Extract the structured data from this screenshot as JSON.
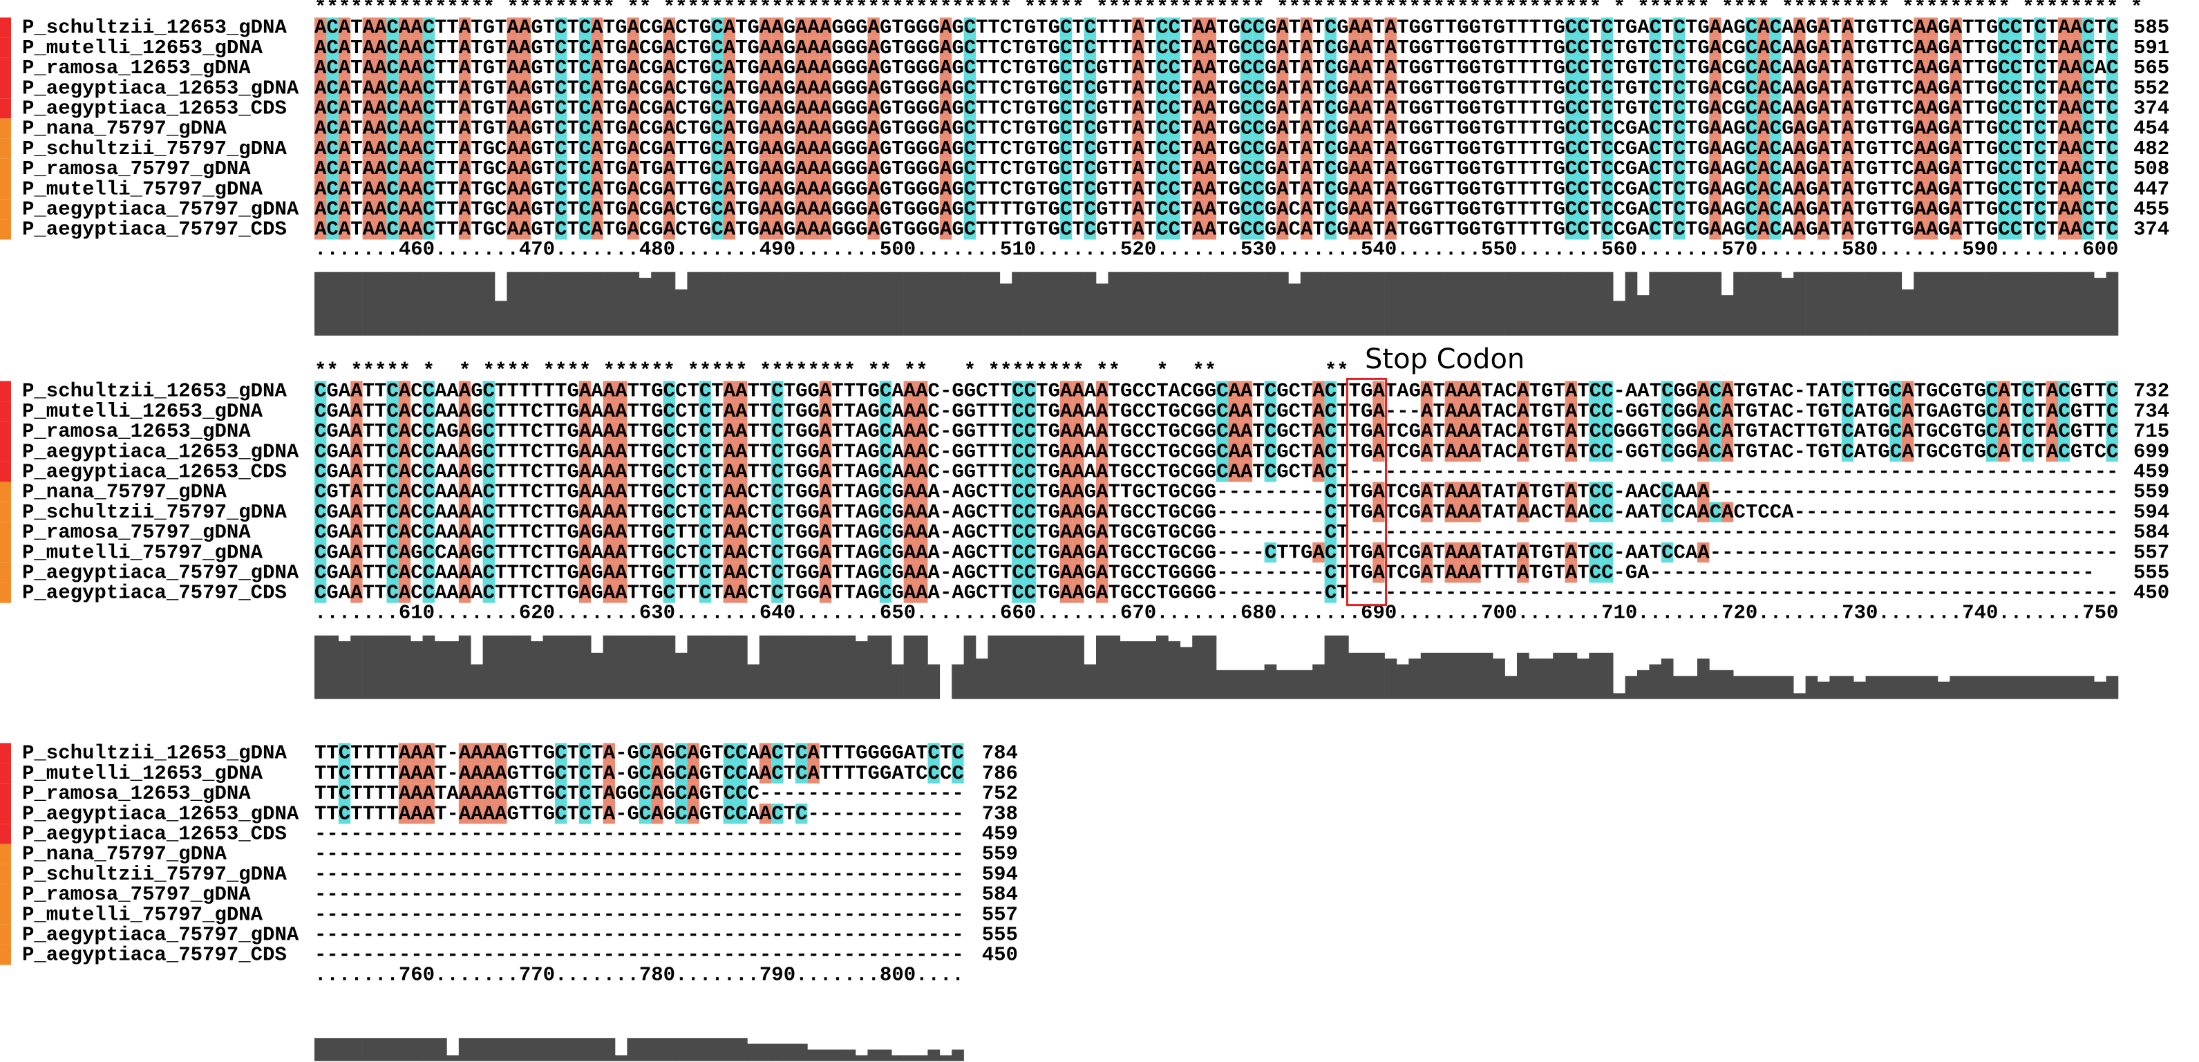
{
  "annotation": "Stop Codon",
  "blocks": [
    {
      "conservation": "*************** ********* ** ***************************** ***** ************** *************************** * ****** **** ********* ********* ******** *",
      "rows": [
        {
          "name": "P_schultzii_12653_gDNA",
          "sequence": "ACATAACAACTTATGTAAGTCTCATGACGACTGCATGAAGAAAGGGAGTGGGAGCTTCTGTGCTCTTTATCCTAATGCCGATATCGAATATGGTTGGTGTTTTGCCTCTGACTCTGAAGCACAAGATATGTTCAAGATTGCCTCTAACTC",
          "count": 585
        },
        {
          "name": "P_mutelli_12653_gDNA",
          "sequence": "ACATAACAACTTATGTAAGTCTCATGACGACTGCATGAAGAAAGGGAGTGGGAGCTTCTGTGCTCTTTATCCTAATGCCGATATCGAATATGGTTGGTGTTTTGCCTCTGTCTCTGACGCACAAGATATGTTCAAGATTGCCTCTAACTC",
          "count": 591
        },
        {
          "name": "P_ramosa_12653_gDNA",
          "sequence": "ACATAACAACTTATGTAAGTCTCATGACGACTGCATGAAGAAAGGGAGTGGGAGCTTCTGTGCTCGTTATCCTAATGCCGATATCGAATATGGTTGGTGTTTTGCCTCTGTCTCTGACGCACAAGATATGTTCAAGATTGCCTCTAACAC",
          "count": 565
        },
        {
          "name": "P_aegyptiaca_12653_gDNA",
          "sequence": "ACATAACAACTTATGTAAGTCTCATGACGACTGCATGAAGAAAGGGAGTGGGAGCTTCTGTGCTCGTTATCCTAATGCCGATATCGAATATGGTTGGTGTTTTGCCTCTGTCTCTGACGCACAAGATATGTTCAAGATTGCCTCTAACTC",
          "count": 552
        },
        {
          "name": "P_aegyptiaca_12653_CDS",
          "sequence": "ACATAACAACTTATGTAAGTCTCATGACGACTGCATGAAGAAAGGGAGTGGGAGCTTCTGTGCTCGTTATCCTAATGCCGATATCGAATATGGTTGGTGTTTTGCCTCTGTCTCTGACGCACAAGATATGTTCAAGATTGCCTCTAACTC",
          "count": 374
        },
        {
          "name": "P_nana_75797_gDNA",
          "sequence": "ACATAACAACTTATGTAAGTCTCATGACGACTGCATGAAGAAAGGGAGTGGGAGCTTCTGTGCTCGTTATCCTAATGCCGATATCGAATATGGTTGGTGTTTTGCCTCCGACTCTGAAGCACGAGATATGTTGAAGATTGCCTCTAACTC",
          "count": 454
        },
        {
          "name": "P_schultzii_75797_gDNA",
          "sequence": "ACATAACAACTTATGCAAGTCTCATGACGATTGCATGAAGAAAGGGAGTGGGAGCTTCTGTGCTCGTTATCCTAATGCCGATATCGAATATGGTTGGTGTTTTGCCTCCGACTCTGAAGCACAAGATATGTTCAAGATTGCCTCTAACTC",
          "count": 482
        },
        {
          "name": "P_ramosa_75797_gDNA",
          "sequence": "ACATAACAACTTATGCAAGTCTCATGATGATTGCATGAAGAAAGGGAGTGGGAGCTTCTGTGCTCGTTATCCTAATGCCGATATCGAATATGGTTGGTGTTTTGCCTCCGACTCTGAAGCACAAGATATGTTCAAGATTGCCTCTAACTC",
          "count": 508
        },
        {
          "name": "P_mutelli_75797_gDNA",
          "sequence": "ACATAACAACTTATGCAAGTCTCATGACGATTGCATGAAGAAAGGGAGTGGGAGCTTCTGTGCTCGTTATCCTAATGCCGATATCGAATATGGTTGGTGTTTTGCCTCCGACTCTGAAGCACAAGATATGTTCAAGATTGCCTCTAACTC",
          "count": 447
        },
        {
          "name": "P_aegyptiaca_75797_gDNA",
          "sequence": "ACATAACAACTTATGCAAGTCTCATGACGACTGCATGAAGAAAGGGAGTGGGAGCTTTTGTGCTCGTTATCCTAATGCCGACATCGAATATGGTTGGTGTTTTGCCTCCGACTCTGAAGCACAAGATATGTTGAAGATTGCCTCTAACTC",
          "count": 455
        },
        {
          "name": "P_aegyptiaca_75797_CDS",
          "sequence": "ACATAACAACTTATGCAAGTCTCATGACGACTGCATGAAGAAAGGGAGTGGGAGCTTTTGTGCTCGTTATCCTAATGCCGACATCGAATATGGTTGGTGTTTTGCCTCCGACTCTGAAGCACAAGATATGTTGAAGATTGCCTCTAACTC",
          "count": 374
        }
      ],
      "ruler": ".......460.......470.......480.......490.......500.......510.......520.......530.......540.......550.......560.......570.......580.......590.......600"
    },
    {
      "conservation": "** ***** *  * **** **** ****** ***** ******** ** **   * ******** **   *  **         **",
      "rows": [
        {
          "name": "P_schultzii_12653_gDNA",
          "sequence": "CGAATTCACCAAAGCTTTTTTGAAAATTGCCTCTAATTCTGGATTTGCAAAC-GGCTTCCTGAAAATGCCTACGGCAATCGCTACTTGATAGATAAATACATGTATCC-AATCGGACATGTAC-TATCTTGCATGCGTGCATCTACGTTC",
          "count": 732
        },
        {
          "name": "P_mutelli_12653_gDNA",
          "sequence": "CGAATTCACCAAAGCTTTCTTGAAAATTGCCTCTAATTCTGGATTAGCAAAC-GGTTTCCTGAAAATGCCTGCGGCAATCGCTACTTGA---ATAAATACATGTATCC-GGTCGGACATGTAC-TGTCATGCATGAGTGCATCTACGTTC",
          "count": 734
        },
        {
          "name": "P_ramosa_12653_gDNA",
          "sequence": "CGAATTCACCAGAGCTTTCTTGAAAATTGCCTCTAATTCTGGATTAGCAAAC-GGTTTCCTGAAAATGCCTGCGGCAATCGCTACTTGATCGATAAATACATGTATCCGGGTCGGACATGTACTTGTCATGCATGCGTGCATCTACGTTC",
          "count": 715
        },
        {
          "name": "P_aegyptiaca_12653_gDNA",
          "sequence": "CGAATTCACCAAAGCTTTCTTGAAAATTGCCTCTAATTCTGGATTAGCAAAC-GGTTTCCTGAAAATGCCTGCGGCAATCGCTACTTGATCGATAAATACATGTATCC-GGTCGGACATGTAC-TGTCATGCATGCGTGCATCTACGTCC",
          "count": 699
        },
        {
          "name": "P_aegyptiaca_12653_CDS",
          "sequence": "CGAATTCACCAAAGCTTTCTTGAAAATTGCCTCTAATTCTGGATTAGCAAAC-GGTTTCCTGAAAATGCCTGCGGCAATCGCTACT----------------------------------------------------------------",
          "count": 459
        },
        {
          "name": "P_nana_75797_gDNA",
          "sequence": "CGTATTCACCAAAACTTTCTTGAAAATTGCCTCTAACTCTGGATTAGCGAAA-AGCTTCCTGAAGATTGCTGCGG---------CTTGATCGATAAATATATGTATCC-AACCAAA----------------------------------",
          "count": 559
        },
        {
          "name": "P_schultzii_75797_gDNA",
          "sequence": "CGAATTCACCAAAACTTTCTTGAAAATTGCCTCTAACTCTGGATTAGCGAAA-AGCTTCCTGAAGATGCCTGCGG---------CTTGATCGATAAATATAACTAACC-AATCCAACACTCCA---------------------------",
          "count": 594
        },
        {
          "name": "P_ramosa_75797_gDNA",
          "sequence": "CGAATTCACCAAAACTTTCTTGAGAATTGCTTCTAACTCTGGATTAGCGAAA-AGCTTCCTGAAGATGCGTGCGG---------CT----------------------------------------------------------------",
          "count": 584
        },
        {
          "name": "P_mutelli_75797_gDNA",
          "sequence": "CGAATTCAGCCAAGCTTTCTTGAAAATTGCCTCTAACTCTGGATTAGCGAAA-AGCTTCCTGAAGATGCCTGCGG----CTTGACTTGATCGATAAATATATGTATCC-AATCCAA----------------------------------",
          "count": 557
        },
        {
          "name": "P_aegyptiaca_75797_gDNA",
          "sequence": "CGAATTCACCAAAACTTTCTTGAGAATTGCTTCTAACTCTGGATTAGCGAAA-AGCTTCCTGAAGATGCCTGGGG---------CTTGATCGATAAATTTATGTATCC-GA-------------------------------------",
          "count": 555
        },
        {
          "name": "P_aegyptiaca_75797_CDS",
          "sequence": "CGAATTCACCAAAACTTTCTTGAGAATTGCTTCTAACTCTGGATTAGCGAAA-AGCTTCCTGAAGATGCCTGGGG---------CT----------------------------------------------------------------",
          "count": 450
        }
      ],
      "ruler": ".......610.......620.......630.......640.......650.......660.......670.......680.......690.......700.......710.......720.......730.......740.......750"
    },
    {
      "rows": [
        {
          "name": "P_schultzii_12653_gDNA",
          "sequence": "TTCTTTTAAAT-AAAAGTTGCTCTA-GCAGCAGTCCAACTCATTTGGGGATCTC",
          "count": 784
        },
        {
          "name": "P_mutelli_12653_gDNA",
          "sequence": "TTCTTTTAAAT-AAAAGTTGCTCTA-GCAGCAGTCCAACTCATTTTGGATCCCC",
          "count": 786
        },
        {
          "name": "P_ramosa_12653_gDNA",
          "sequence": "TTCTTTTAAATAAAAAGTTGCTCTAGGCAGCAGTCCC-----------------",
          "count": 752
        },
        {
          "name": "P_aegyptiaca_12653_gDNA",
          "sequence": "TTCTTTTAAAT-AAAAGTTGCTCTA-GCAGCAGTCCAACTC-------------",
          "count": 738
        },
        {
          "name": "P_aegyptiaca_12653_CDS",
          "sequence": "------------------------------------------------------",
          "count": 459
        },
        {
          "name": "P_nana_75797_gDNA",
          "sequence": "------------------------------------------------------",
          "count": 559
        },
        {
          "name": "P_schultzii_75797_gDNA",
          "sequence": "------------------------------------------------------",
          "count": 594
        },
        {
          "name": "P_ramosa_75797_gDNA",
          "sequence": "------------------------------------------------------",
          "count": 584
        },
        {
          "name": "P_mutelli_75797_gDNA",
          "sequence": "------------------------------------------------------",
          "count": 557
        },
        {
          "name": "P_aegyptiaca_75797_gDNA",
          "sequence": "------------------------------------------------------",
          "count": 555
        },
        {
          "name": "P_aegyptiaca_75797_CDS",
          "sequence": "------------------------------------------------------",
          "count": 450
        }
      ],
      "ruler": ".......760.......770.......780.......790.......800...."
    }
  ]
}
